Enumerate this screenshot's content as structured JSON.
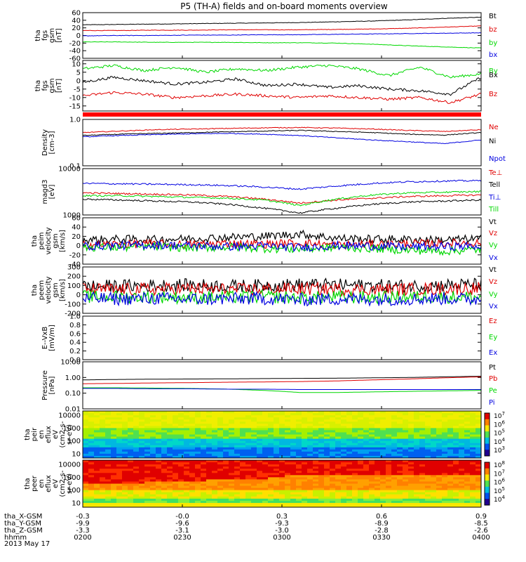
{
  "title": "P5 (TH-A) fields and on-board moments overview",
  "colors": {
    "black": "#000000",
    "red": "#e00000",
    "green": "#00d800",
    "blue": "#0000e0",
    "lightgreen": "#2ed02e"
  },
  "time_axis": {
    "tick_labels": [
      "0200",
      "0230",
      "0300",
      "0330",
      "0400"
    ],
    "rows": [
      {
        "label": "tha_X-GSM",
        "values": [
          "-0.3",
          "-0.0",
          "0.3",
          "0.6",
          "0.9"
        ]
      },
      {
        "label": "tha_Y-GSM",
        "values": [
          "-9.9",
          "-9.6",
          "-9.3",
          "-8.9",
          "-8.5"
        ]
      },
      {
        "label": "tha_Z-GSM",
        "values": [
          "-3.3",
          "-3.1",
          "-3.0",
          "-2.8",
          "-2.6"
        ]
      },
      {
        "label": "hhmm",
        "values": [
          "0200",
          "0230",
          "0300",
          "0330",
          "0400"
        ]
      }
    ],
    "date": "2013 May 17"
  },
  "chart_data": [
    {
      "id": "p1",
      "type": "line",
      "ylabel": [
        "tha",
        "fgs",
        "gsm",
        "[nT]"
      ],
      "ylim": [
        -60,
        60
      ],
      "ticks": [
        "60",
        "40",
        "20",
        "0",
        "-20",
        "-40",
        "-60"
      ],
      "tick_values": [
        60,
        40,
        20,
        0,
        -20,
        -40,
        -60
      ],
      "series": [
        {
          "name": "Bt",
          "color": "#000000",
          "values": [
            28,
            29,
            30,
            31,
            32,
            33,
            34,
            36,
            38,
            41,
            45,
            48
          ]
        },
        {
          "name": "bz",
          "color": "#e00000",
          "values": [
            13,
            13,
            14,
            14,
            15,
            15,
            15,
            16,
            17,
            19,
            22,
            25
          ]
        },
        {
          "name": "by",
          "color": "#00d800",
          "values": [
            -17,
            -17,
            -18,
            -18,
            -18,
            -19,
            -19,
            -20,
            -23,
            -27,
            -30,
            -33
          ]
        },
        {
          "name": "bx",
          "color": "#0000e0",
          "values": [
            -1,
            0,
            0,
            1,
            1,
            2,
            2,
            3,
            4,
            5,
            6,
            7
          ]
        }
      ]
    },
    {
      "id": "p2",
      "type": "line",
      "ylabel": [
        "tha",
        "fgs",
        "gsm",
        "[nT]"
      ],
      "ylim": [
        -18,
        12
      ],
      "ticks": [
        "10",
        "5",
        "0",
        "-5",
        "-10",
        "-15"
      ],
      "tick_values": [
        10,
        5,
        0,
        -5,
        -10,
        -15
      ],
      "series": [
        {
          "name": "By",
          "color": "#00d800",
          "values": [
            7,
            9,
            6,
            8,
            5,
            7,
            6,
            8,
            9,
            7,
            3,
            8,
            2,
            4
          ]
        },
        {
          "name": "Bx",
          "color": "#000000",
          "values": [
            -1,
            2,
            0,
            -2,
            -1,
            1,
            -3,
            -2,
            -4,
            -3,
            -5,
            -6,
            -8,
            2
          ]
        },
        {
          "name": "Bz",
          "color": "#e00000",
          "values": [
            -9,
            -7,
            -8,
            -10,
            -9,
            -8,
            -9,
            -10,
            -9,
            -10,
            -11,
            -10,
            -13,
            -8
          ]
        }
      ]
    },
    {
      "id": "p3",
      "type": "line",
      "ylabel": [
        "Density",
        "[cm-3]"
      ],
      "ylim": [
        0.1,
        1.0
      ],
      "scale": "log",
      "ticks": [
        "1.0",
        "0.1"
      ],
      "tick_values": [
        1.0,
        0.1
      ],
      "series": [
        {
          "name": "Ne",
          "color": "#e00000",
          "values": [
            0.52,
            0.56,
            0.6,
            0.62,
            0.64,
            0.66,
            0.67,
            0.65,
            0.62,
            0.58,
            0.55,
            0.6
          ]
        },
        {
          "name": "Ni",
          "color": "#000000",
          "values": [
            0.45,
            0.48,
            0.5,
            0.52,
            0.54,
            0.56,
            0.58,
            0.55,
            0.52,
            0.48,
            0.46,
            0.52
          ]
        },
        {
          "name": "Npot",
          "color": "#0000e0",
          "values": [
            0.42,
            0.45,
            0.47,
            0.49,
            0.5,
            0.48,
            0.45,
            0.4,
            0.36,
            0.33,
            0.3,
            0.36
          ]
        }
      ]
    },
    {
      "id": "p4",
      "type": "line",
      "ylabel": [
        "magd3",
        "[eV]"
      ],
      "ylim": [
        1000,
        10000
      ],
      "scale": "log",
      "ticks": [
        "10000",
        "1000"
      ],
      "tick_values": [
        10000,
        1000
      ],
      "series": [
        {
          "name": "Te⊥",
          "color": "#e00000",
          "values": [
            3000,
            2900,
            2800,
            2700,
            2500,
            2200,
            1800,
            2100,
            2300,
            2500,
            2600,
            2700
          ]
        },
        {
          "name": "Tell",
          "color": "#000000",
          "values": [
            2200,
            2100,
            2000,
            1900,
            1700,
            1400,
            1100,
            1400,
            1700,
            1900,
            2000,
            2100
          ]
        },
        {
          "name": "Ti⊥",
          "color": "#0000e0",
          "values": [
            4800,
            4700,
            4600,
            4500,
            4300,
            4000,
            3600,
            4200,
            4800,
            5200,
            5400,
            5500
          ]
        },
        {
          "name": "Till",
          "color": "#00d800",
          "values": [
            2600,
            2600,
            2500,
            2400,
            2300,
            2100,
            1600,
            2200,
            2700,
            3000,
            3100,
            3200
          ]
        }
      ]
    },
    {
      "id": "p5",
      "type": "line",
      "ylabel": [
        "tha",
        "peim",
        "velocity",
        "gsm",
        "[km/s]"
      ],
      "ylim": [
        -40,
        60
      ],
      "ticks": [
        "60",
        "40",
        "20",
        "0",
        "-20",
        "-40"
      ],
      "tick_values": [
        60,
        40,
        20,
        0,
        -20,
        -40
      ],
      "series": [
        {
          "name": "Vt",
          "color": "#000000",
          "values": [
            12,
            14,
            13,
            15,
            18,
            20,
            25,
            16,
            14,
            13,
            12,
            15
          ]
        },
        {
          "name": "Vz",
          "color": "#e00000",
          "values": [
            2,
            3,
            4,
            2,
            5,
            3,
            6,
            1,
            3,
            4,
            5,
            6
          ]
        },
        {
          "name": "Vy",
          "color": "#00d800",
          "values": [
            -3,
            -4,
            -2,
            -5,
            -3,
            -6,
            -8,
            -4,
            -6,
            -10,
            -12,
            -8
          ]
        },
        {
          "name": "Vx",
          "color": "#0000e0",
          "values": [
            -1,
            0,
            1,
            0,
            -2,
            -1,
            -4,
            0,
            -1,
            -3,
            -2,
            -1
          ]
        }
      ]
    },
    {
      "id": "p6",
      "type": "line",
      "ylabel": [
        "tha",
        "peem",
        "velocity",
        "gsm",
        "[km/s]"
      ],
      "ylim": [
        -200,
        300
      ],
      "ticks": [
        "300",
        "200",
        "100",
        "0",
        "-100",
        "-200"
      ],
      "tick_values": [
        300,
        200,
        100,
        0,
        -100,
        -200
      ],
      "series": [
        {
          "name": "Vt",
          "color": "#000000",
          "values": [
            90,
            95,
            100,
            105,
            95,
            100,
            110,
            105,
            100,
            95,
            105,
            110
          ]
        },
        {
          "name": "Vz",
          "color": "#e00000",
          "values": [
            60,
            55,
            60,
            65,
            55,
            60,
            65,
            60,
            55,
            60,
            65,
            70
          ]
        },
        {
          "name": "Vy",
          "color": "#00d800",
          "values": [
            -20,
            -25,
            -20,
            -30,
            -25,
            -20,
            -35,
            -25,
            -30,
            -25,
            -20,
            -30
          ]
        },
        {
          "name": "Vx",
          "color": "#0000e0",
          "values": [
            -40,
            -45,
            -40,
            -50,
            -45,
            -40,
            -55,
            -45,
            -50,
            -45,
            -40,
            -50
          ]
        }
      ]
    },
    {
      "id": "p7",
      "type": "line",
      "ylabel": [
        "E--VxB",
        "[mV/m]"
      ],
      "ylim": [
        0.0,
        1.0
      ],
      "ticks": [
        "1.0",
        "0.8",
        "0.6",
        "0.4",
        "0.2",
        "0.0"
      ],
      "tick_values": [
        1.0,
        0.8,
        0.6,
        0.4,
        0.2,
        0.0
      ],
      "series": [
        {
          "name": "Ez",
          "color": "#e00000",
          "values": []
        },
        {
          "name": "Ey",
          "color": "#00d800",
          "values": []
        },
        {
          "name": "Ex",
          "color": "#0000e0",
          "values": []
        }
      ]
    },
    {
      "id": "p8",
      "type": "line",
      "ylabel": [
        "Pressure",
        "[nPa]"
      ],
      "ylim": [
        0.01,
        10
      ],
      "scale": "log",
      "ticks": [
        "10.00",
        "1.00",
        "0.10",
        "0.01"
      ],
      "tick_values": [
        10,
        1,
        0.1,
        0.01
      ],
      "series": [
        {
          "name": "Pt",
          "color": "#000000",
          "values": [
            0.7,
            0.75,
            0.78,
            0.8,
            0.82,
            0.85,
            0.88,
            0.9,
            0.95,
            1.0,
            1.1,
            1.2
          ]
        },
        {
          "name": "Pb",
          "color": "#e00000",
          "values": [
            0.4,
            0.42,
            0.45,
            0.47,
            0.5,
            0.52,
            0.55,
            0.6,
            0.7,
            0.8,
            0.95,
            1.1
          ]
        },
        {
          "name": "Pe",
          "color": "#00d800",
          "values": [
            0.22,
            0.22,
            0.21,
            0.2,
            0.18,
            0.15,
            0.11,
            0.11,
            0.12,
            0.13,
            0.14,
            0.15
          ]
        },
        {
          "name": "Pi",
          "color": "#0000e0",
          "values": [
            0.2,
            0.2,
            0.19,
            0.19,
            0.18,
            0.18,
            0.17,
            0.17,
            0.17,
            0.17,
            0.17,
            0.17
          ]
        }
      ]
    },
    {
      "id": "p9",
      "type": "heatmap",
      "ylabel": [
        "tha",
        "peir",
        "en",
        "eflux",
        "eV",
        "(cm2-s-",
        "sr-eV)"
      ],
      "ticks": [
        "10000",
        "1000",
        "100",
        "10"
      ],
      "colorbar": {
        "labels": [
          "10^7",
          "10^6",
          "10^5",
          "10^4",
          "10^3"
        ]
      }
    },
    {
      "id": "p10",
      "type": "heatmap",
      "ylabel": [
        "tha",
        "peer",
        "en",
        "eflux",
        "eV",
        "(cm2-s-",
        "sr-eV)"
      ],
      "ticks": [
        "10000",
        "1000",
        "100",
        "10"
      ],
      "colorbar": {
        "labels": [
          "10^8",
          "10^7",
          "10^6",
          "10^5",
          "10^4"
        ]
      }
    }
  ]
}
